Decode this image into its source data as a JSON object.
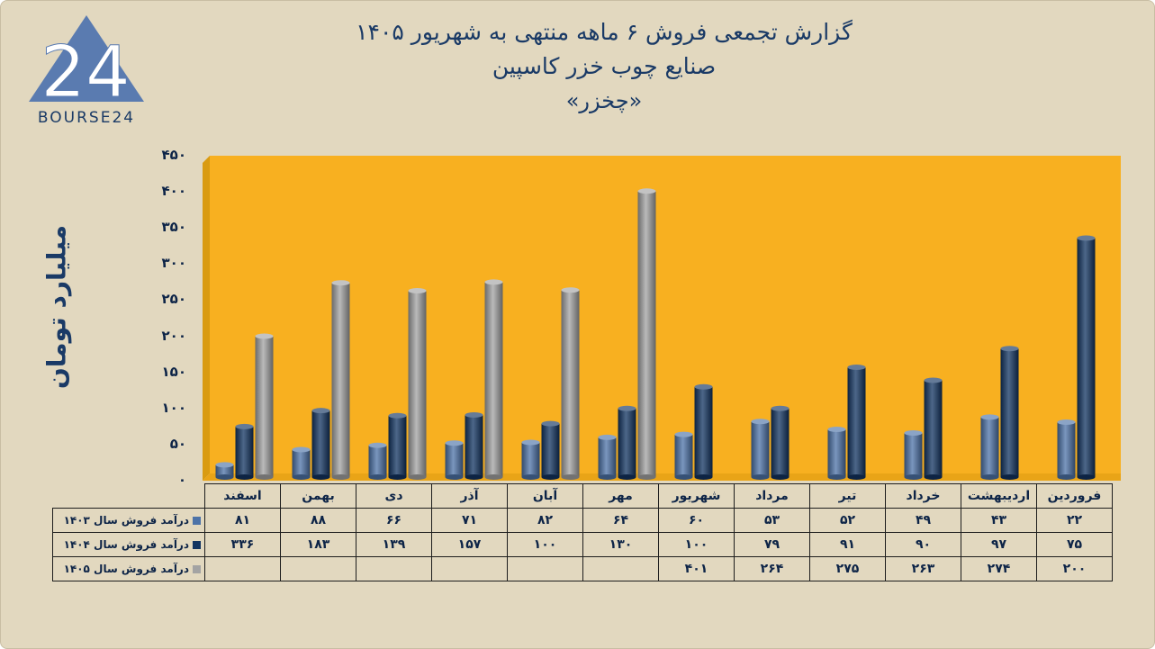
{
  "title_lines": [
    "گزارش تجمعی فروش ۶ ماهه منتهی به شهریور ۱۴۰۵",
    "صنایع چوب خزر کاسپین",
    "«چخزر»"
  ],
  "logo": {
    "text": "BOURSE24",
    "mark": "24"
  },
  "colors": {
    "background": "#e2d8bf",
    "plot_area": "#f8b020",
    "plot_wall": "#d99b12",
    "title_text": "#1a3a66"
  },
  "chart_data": {
    "type": "bar",
    "title": "گزارش تجمعی فروش ۶ ماهه منتهی به شهریور ۱۴۰۵",
    "ylabel": "میلیارد تومان",
    "ylim": [
      0,
      450
    ],
    "yticks": [
      0,
      50,
      100,
      150,
      200,
      250,
      300,
      350,
      400,
      450
    ],
    "ytick_labels": [
      "۰",
      "۵۰",
      "۱۰۰",
      "۱۵۰",
      "۲۰۰",
      "۲۵۰",
      "۳۰۰",
      "۳۵۰",
      "۴۰۰",
      "۴۵۰"
    ],
    "grid": false,
    "legend": "table-bottom",
    "categories": [
      "فروردین",
      "اردیبهشت",
      "خرداد",
      "تیر",
      "مرداد",
      "شهریور",
      "مهر",
      "آبان",
      "آذر",
      "دی",
      "بهمن",
      "اسفند"
    ],
    "series": [
      {
        "name": "درآمد فروش سال ۱۴۰۳",
        "color": "#4d73a8",
        "values": [
          22,
          43,
          49,
          52,
          53,
          60,
          64,
          82,
          71,
          66,
          88,
          81
        ],
        "labels": [
          "۲۲",
          "۴۳",
          "۴۹",
          "۵۲",
          "۵۳",
          "۶۰",
          "۶۴",
          "۸۲",
          "۷۱",
          "۶۶",
          "۸۸",
          "۸۱"
        ]
      },
      {
        "name": "درآمد فروش سال ۱۴۰۴",
        "color": "#123461",
        "values": [
          75,
          97,
          90,
          91,
          79,
          100,
          130,
          100,
          157,
          139,
          183,
          336
        ],
        "labels": [
          "۷۵",
          "۹۷",
          "۹۰",
          "۹۱",
          "۷۹",
          "۱۰۰",
          "۱۳۰",
          "۱۰۰",
          "۱۵۷",
          "۱۳۹",
          "۱۸۳",
          "۳۳۶"
        ]
      },
      {
        "name": "درآمد فروش سال ۱۴۰۵",
        "color": "#a3a3a3",
        "values": [
          200,
          274,
          263,
          275,
          264,
          401,
          null,
          null,
          null,
          null,
          null,
          null
        ],
        "labels": [
          "۲۰۰",
          "۲۷۴",
          "۲۶۳",
          "۲۷۵",
          "۲۶۴",
          "۴۰۱",
          "",
          "",
          "",
          "",
          "",
          ""
        ]
      }
    ]
  }
}
